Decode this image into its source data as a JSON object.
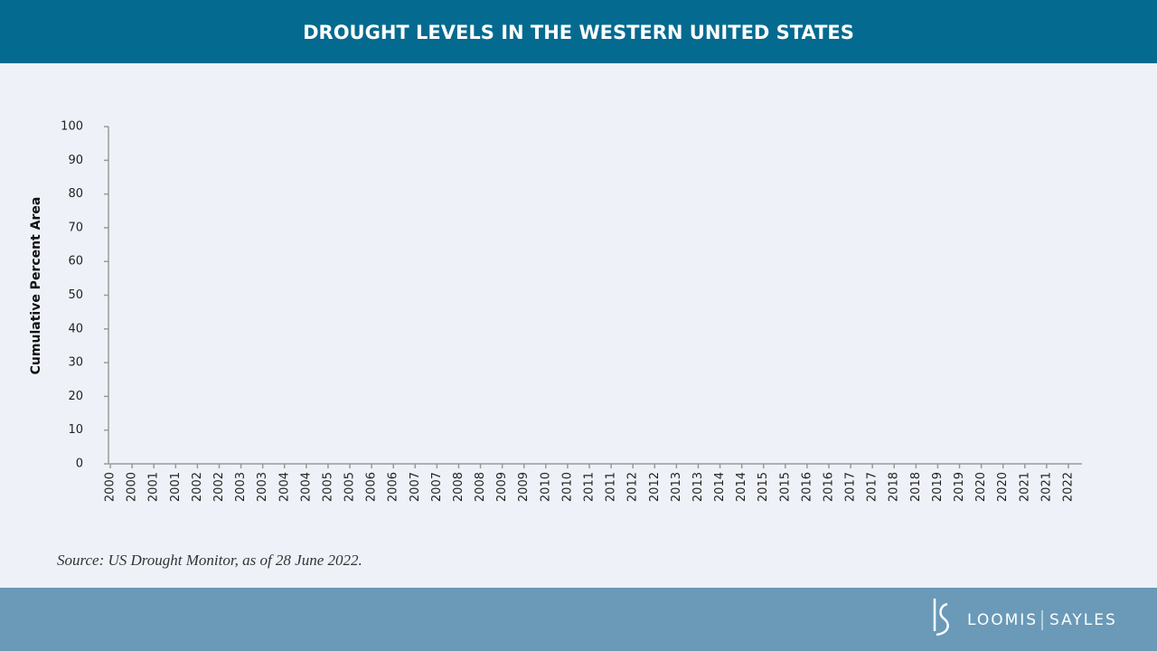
{
  "chart_data": {
    "type": "area",
    "title": "DROUGHT LEVELS IN THE WESTERN UNITED STATES",
    "y_label": "Cumulative Percent Area",
    "categories": [
      "2000",
      "2000",
      "2001",
      "2001",
      "2002",
      "2002",
      "2003",
      "2003",
      "2004",
      "2004",
      "2005",
      "2005",
      "2006",
      "2006",
      "2007",
      "2007",
      "2008",
      "2008",
      "2009",
      "2009",
      "2010",
      "2010",
      "2011",
      "2011",
      "2012",
      "2012",
      "2013",
      "2013",
      "2014",
      "2014",
      "2015",
      "2015",
      "2016",
      "2016",
      "2017",
      "2017",
      "2018",
      "2018",
      "2019",
      "2019",
      "2020",
      "2020",
      "2021",
      "2021",
      "2022"
    ],
    "ylim": [
      0,
      100
    ],
    "yticks": [
      0,
      10,
      20,
      30,
      40,
      50,
      60,
      70,
      80,
      90,
      100
    ],
    "source": "Source: US Drought Monitor, as of 28 June 2022."
  },
  "footer": {
    "brand_left": "LOOMIS",
    "brand_right": "SAYLES"
  }
}
